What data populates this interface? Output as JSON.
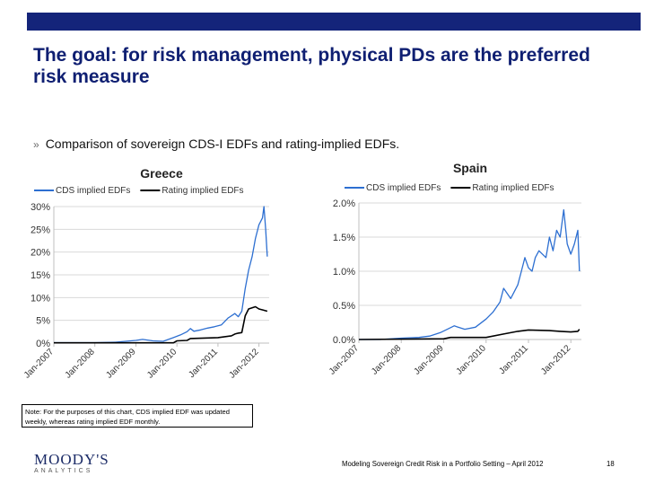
{
  "slide": {
    "title": "The goal: for risk management, physical PDs are the preferred risk measure",
    "bullet_mark": "»",
    "bullet": "Comparison of sovereign CDS-I EDFs and rating-implied EDFs.",
    "note": "Note: For the purposes of this chart, CDS implied EDF was updated weekly, whereas rating implied EDF monthly.",
    "logo": "MOODY'S",
    "logo_sub": "ANALYTICS",
    "footer": "Modeling Sovereign Credit Risk in a Portfolio Setting – April 2012",
    "page_number": "18"
  },
  "colors": {
    "topbar": "#14247a",
    "title": "#0f1f72",
    "cds": "#2d6fd1",
    "rating": "#000000",
    "grid": "#d9d9d9"
  },
  "chart_data": [
    {
      "type": "line",
      "title": "Greece",
      "ylim": [
        0,
        30
      ],
      "xlim": [
        "2007-01-01",
        "2012-04-01"
      ],
      "grid": true,
      "legend": "top",
      "y_ticks": [
        "0%",
        "5%",
        "10%",
        "15%",
        "20%",
        "25%",
        "30%"
      ],
      "x_ticks": [
        "Jan-2007",
        "Jan-2008",
        "Jan-2009",
        "Jan-2010",
        "Jan-2011",
        "Jan-2012"
      ],
      "series": [
        {
          "name": "CDS implied EDFs",
          "color": "#2d6fd1",
          "points": [
            [
              "2007-01-01",
              0.1
            ],
            [
              "2007-07-01",
              0.1
            ],
            [
              "2008-01-01",
              0.1
            ],
            [
              "2008-07-01",
              0.2
            ],
            [
              "2008-10-01",
              0.4
            ],
            [
              "2009-01-01",
              0.6
            ],
            [
              "2009-03-01",
              0.8
            ],
            [
              "2009-06-01",
              0.5
            ],
            [
              "2009-09-01",
              0.4
            ],
            [
              "2009-12-01",
              1.2
            ],
            [
              "2010-02-01",
              1.8
            ],
            [
              "2010-04-01",
              2.5
            ],
            [
              "2010-05-01",
              3.2
            ],
            [
              "2010-06-01",
              2.6
            ],
            [
              "2010-08-01",
              2.9
            ],
            [
              "2010-10-01",
              3.3
            ],
            [
              "2010-12-01",
              3.6
            ],
            [
              "2011-02-01",
              4.0
            ],
            [
              "2011-04-01",
              5.5
            ],
            [
              "2011-06-01",
              6.5
            ],
            [
              "2011-07-01",
              5.8
            ],
            [
              "2011-08-01",
              7.0
            ],
            [
              "2011-09-01",
              12.0
            ],
            [
              "2011-10-01",
              16.0
            ],
            [
              "2011-11-01",
              19.0
            ],
            [
              "2011-12-01",
              23.0
            ],
            [
              "2012-01-01",
              26.0
            ],
            [
              "2012-02-01",
              27.5
            ],
            [
              "2012-02-15",
              30.0
            ],
            [
              "2012-03-01",
              25.0
            ],
            [
              "2012-03-15",
              19.0
            ]
          ]
        },
        {
          "name": "Rating implied EDFs",
          "color": "#000000",
          "points": [
            [
              "2007-01-01",
              0.05
            ],
            [
              "2009-12-01",
              0.05
            ],
            [
              "2010-01-01",
              0.5
            ],
            [
              "2010-04-01",
              0.6
            ],
            [
              "2010-05-01",
              1.0
            ],
            [
              "2011-01-01",
              1.2
            ],
            [
              "2011-05-01",
              1.6
            ],
            [
              "2011-06-01",
              2.0
            ],
            [
              "2011-07-01",
              2.2
            ],
            [
              "2011-08-01",
              2.3
            ],
            [
              "2011-09-01",
              6.0
            ],
            [
              "2011-10-01",
              7.5
            ],
            [
              "2011-12-01",
              8.0
            ],
            [
              "2012-01-01",
              7.5
            ],
            [
              "2012-02-01",
              7.3
            ],
            [
              "2012-03-15",
              7.0
            ]
          ]
        }
      ]
    },
    {
      "type": "line",
      "title": "Spain",
      "ylim": [
        0,
        2.0
      ],
      "xlim": [
        "2007-01-01",
        "2012-04-01"
      ],
      "grid": true,
      "legend": "top",
      "y_ticks": [
        "0.0%",
        "0.5%",
        "1.0%",
        "1.5%",
        "2.0%"
      ],
      "x_ticks": [
        "Jan-2007",
        "Jan-2008",
        "Jan-2009",
        "Jan-2010",
        "Jan-2011",
        "Jan-2012"
      ],
      "series": [
        {
          "name": "CDS implied EDFs",
          "color": "#2d6fd1",
          "points": [
            [
              "2007-01-01",
              0.0
            ],
            [
              "2007-07-01",
              0.0
            ],
            [
              "2008-01-01",
              0.02
            ],
            [
              "2008-06-01",
              0.03
            ],
            [
              "2008-09-01",
              0.05
            ],
            [
              "2008-12-01",
              0.1
            ],
            [
              "2009-02-01",
              0.15
            ],
            [
              "2009-04-01",
              0.2
            ],
            [
              "2009-07-01",
              0.15
            ],
            [
              "2009-10-01",
              0.18
            ],
            [
              "2010-01-01",
              0.3
            ],
            [
              "2010-03-01",
              0.4
            ],
            [
              "2010-05-01",
              0.55
            ],
            [
              "2010-06-01",
              0.75
            ],
            [
              "2010-08-01",
              0.6
            ],
            [
              "2010-10-01",
              0.8
            ],
            [
              "2010-11-01",
              1.0
            ],
            [
              "2010-12-01",
              1.2
            ],
            [
              "2011-01-01",
              1.05
            ],
            [
              "2011-02-01",
              1.0
            ],
            [
              "2011-03-01",
              1.2
            ],
            [
              "2011-04-01",
              1.3
            ],
            [
              "2011-06-01",
              1.2
            ],
            [
              "2011-07-01",
              1.5
            ],
            [
              "2011-08-01",
              1.3
            ],
            [
              "2011-09-01",
              1.6
            ],
            [
              "2011-10-01",
              1.5
            ],
            [
              "2011-11-01",
              1.9
            ],
            [
              "2011-12-01",
              1.4
            ],
            [
              "2012-01-01",
              1.25
            ],
            [
              "2012-02-01",
              1.4
            ],
            [
              "2012-03-01",
              1.6
            ],
            [
              "2012-03-15",
              1.0
            ]
          ]
        },
        {
          "name": "Rating implied EDFs",
          "color": "#000000",
          "points": [
            [
              "2007-01-01",
              0.0
            ],
            [
              "2009-01-01",
              0.01
            ],
            [
              "2009-03-01",
              0.03
            ],
            [
              "2010-01-01",
              0.03
            ],
            [
              "2010-06-01",
              0.08
            ],
            [
              "2010-10-01",
              0.12
            ],
            [
              "2011-01-01",
              0.14
            ],
            [
              "2011-07-01",
              0.13
            ],
            [
              "2011-10-01",
              0.12
            ],
            [
              "2012-01-01",
              0.11
            ],
            [
              "2012-03-01",
              0.12
            ],
            [
              "2012-03-15",
              0.15
            ]
          ]
        }
      ]
    }
  ]
}
